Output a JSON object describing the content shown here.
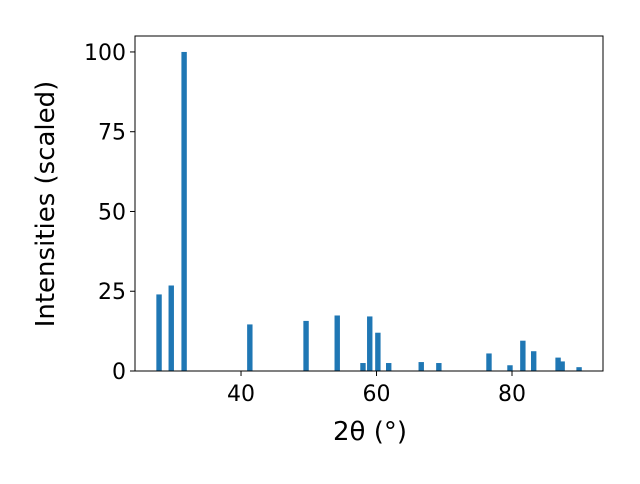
{
  "chart_data": {
    "type": "bar",
    "x_label": "2θ (°)",
    "y_label": "Intensities (scaled)",
    "color": "#1f77b4",
    "x": [
      27.9,
      29.7,
      31.6,
      41.3,
      49.6,
      54.2,
      58.0,
      59.0,
      60.2,
      61.8,
      66.6,
      69.2,
      76.6,
      79.7,
      81.6,
      83.2,
      86.8,
      87.4,
      89.9
    ],
    "values": [
      24,
      26.8,
      100,
      14.6,
      15.7,
      17.4,
      2.5,
      17.1,
      12,
      2.5,
      2.8,
      2.5,
      5.5,
      1.8,
      9.5,
      6.2,
      4.2,
      3,
      1.2
    ],
    "xlim": [
      24.35,
      93.43
    ],
    "ylim": [
      0,
      105
    ],
    "xticks": [
      40,
      60,
      80
    ],
    "yticks": [
      0,
      25,
      50,
      75,
      100
    ]
  }
}
